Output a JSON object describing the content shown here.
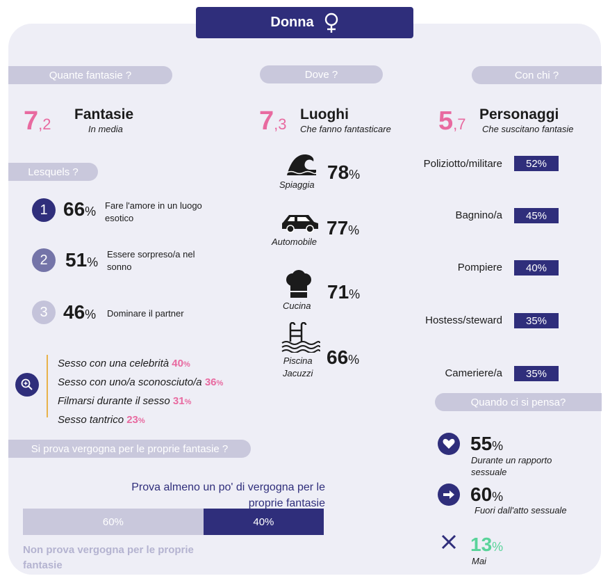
{
  "header": {
    "title": "Donna"
  },
  "sections": {
    "how_many": "Quante fantasie ?",
    "where": "Dove ?",
    "with_whom": "Con chi ?",
    "which": "Lesquels ?",
    "shame": "Si prova vergogna per le proprie fantasie ?",
    "when": "Quando ci si pensa?"
  },
  "fantasies": {
    "int": "7",
    "dec": ",2",
    "title": "Fantasie",
    "subtitle": "In media"
  },
  "places": {
    "int": "7",
    "dec": ",3",
    "title": "Luoghi",
    "subtitle": "Che fanno fantasticare"
  },
  "characters": {
    "int": "5",
    "dec": ",7",
    "title": "Personaggi",
    "subtitle": "Che suscitano fantasie"
  },
  "top_fantasies": [
    {
      "rank": "1",
      "value": "66",
      "unit": "%",
      "text": "Fare l'amore in un luogo esotico",
      "color": "#2f2e7b"
    },
    {
      "rank": "2",
      "value": "51",
      "unit": "%",
      "text": "Essere sorpreso/a nel sonno",
      "color": "#7474a8"
    },
    {
      "rank": "3",
      "value": "46",
      "unit": "%",
      "text": "Dominare il partner",
      "color": "#c4c3da"
    }
  ],
  "other_fantasies": [
    {
      "text": "Sesso con una celebrità ",
      "value": "40",
      "unit": "%"
    },
    {
      "text": "Sesso con uno/a sconosciuto/a ",
      "value": "36",
      "unit": "%"
    },
    {
      "text": "Filmarsi durante il sesso ",
      "value": "31",
      "unit": "%"
    },
    {
      "text": "Sesso tantrico ",
      "value": "23",
      "unit": "%"
    }
  ],
  "place_list": [
    {
      "icon": "wave-icon",
      "label": "Spiaggia",
      "value": "78",
      "unit": "%"
    },
    {
      "icon": "car-icon",
      "label": "Automobile",
      "value": "77",
      "unit": "%"
    },
    {
      "icon": "chef-hat-icon",
      "label": "Cucina",
      "value": "71",
      "unit": "%"
    },
    {
      "icon": "pool-icon",
      "label": "Piscina\nJacuzzi",
      "value": "66",
      "unit": "%"
    }
  ],
  "character_list": [
    {
      "name": "Poliziotto/militare",
      "value": "52%"
    },
    {
      "name": "Bagnino/a",
      "value": "45%"
    },
    {
      "name": "Pompiere",
      "value": "40%"
    },
    {
      "name": "Hostess/steward",
      "value": "35%"
    },
    {
      "name": "Cameriere/a",
      "value": "35%"
    }
  ],
  "shame": {
    "yes_label": "Prova almeno un po' di vergogna per le proprie fantasie",
    "no_label": "Non prova vergogna per le proprie fantasie",
    "no_value": "60%",
    "yes_value": "40%",
    "no_fraction": 0.6,
    "yes_fraction": 0.4
  },
  "when_list": [
    {
      "icon": "heart-icon",
      "value": "55",
      "unit": "%",
      "label": "Durante un rapporto sessuale",
      "color": "#1b1b1b"
    },
    {
      "icon": "arrow-right-icon",
      "value": "60",
      "unit": "%",
      "label": "Fuori dall'atto sessuale",
      "color": "#1b1b1b"
    },
    {
      "icon": "cross-icon",
      "value": "13",
      "unit": "%",
      "label": "Mai",
      "color": "#5ad39a"
    }
  ]
}
